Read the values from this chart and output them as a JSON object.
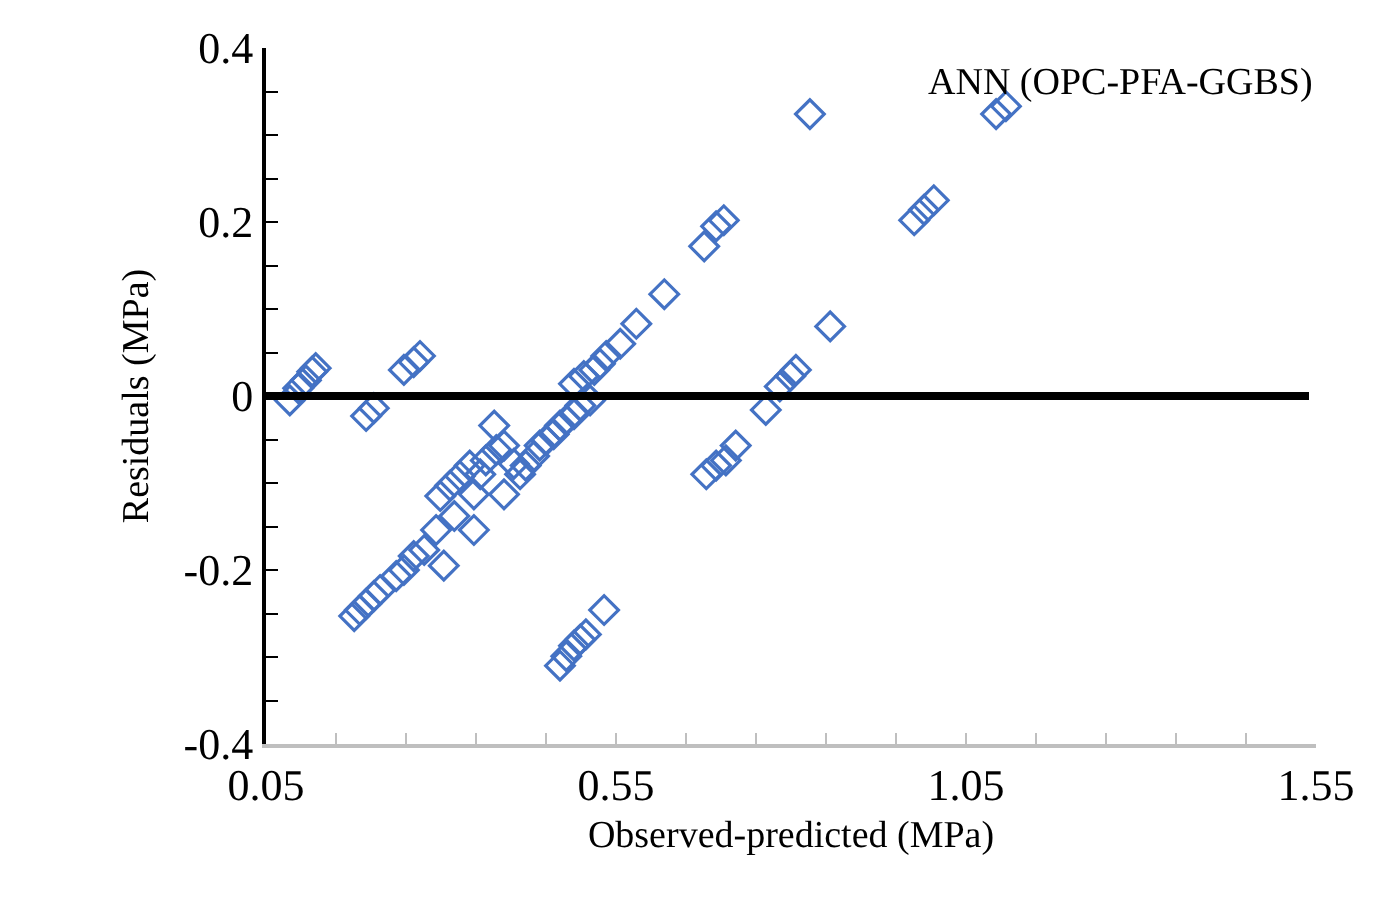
{
  "chart_data": {
    "type": "scatter",
    "xlabel": "Observed-predicted (MPa)",
    "ylabel": "Residuals (MPa)",
    "annotations": [
      "ANN (OPC-PFA-GGBS)"
    ],
    "marker": "diamond",
    "xlim": [
      0.05,
      1.55
    ],
    "xticks": [
      0.05,
      {
        "value": 0.15,
        "label": null
      },
      {
        "value": 0.25,
        "label": null
      },
      {
        "value": 0.35,
        "label": null
      },
      {
        "value": 0.45,
        "label": null
      },
      0.55,
      {
        "value": 0.65,
        "label": null
      },
      {
        "value": 0.75,
        "label": null
      },
      {
        "value": 0.85,
        "label": null
      },
      {
        "value": 0.95,
        "label": null
      },
      1.05,
      {
        "value": 1.15,
        "label": null
      },
      {
        "value": 1.25,
        "label": null
      },
      {
        "value": 1.35,
        "label": null
      },
      {
        "value": 1.45,
        "label": null
      },
      1.55
    ],
    "ylim": [
      -0.4,
      0.4
    ],
    "yticks": [
      -0.4,
      {
        "value": -0.35,
        "label": null
      },
      -0.2,
      {
        "value": -0.3,
        "label": null
      },
      {
        "value": -0.25,
        "label": null
      },
      {
        "value": -0.15,
        "label": null
      },
      {
        "value": -0.1,
        "label": null
      },
      {
        "value": -0.05,
        "label": null
      },
      0,
      {
        "value": 0.05,
        "label": null
      },
      {
        "value": 0.1,
        "label": null
      },
      {
        "value": 0.15,
        "label": null
      },
      0.2,
      {
        "value": 0.25,
        "label": null
      },
      {
        "value": 0.3,
        "label": null
      },
      {
        "value": 0.35,
        "label": null
      },
      0.4
    ],
    "ref_lines": [
      {
        "axis": "y",
        "value": 0,
        "color": "#000000"
      }
    ],
    "series": [
      {
        "color": "#4472c4",
        "x": [
          0.084,
          0.096,
          0.107,
          0.116,
          0.121,
          0.193,
          0.204,
          0.247,
          0.261,
          0.27,
          0.176,
          0.184,
          0.193,
          0.204,
          0.213,
          0.236,
          0.247,
          0.261,
          0.276,
          0.293,
          0.304,
          0.319,
          0.347,
          0.299,
          0.313,
          0.327,
          0.341,
          0.347,
          0.356,
          0.364,
          0.376,
          0.379,
          0.39,
          0.39,
          0.404,
          0.413,
          0.421,
          0.433,
          0.441,
          0.45,
          0.461,
          0.47,
          0.479,
          0.49,
          0.499,
          0.513,
          0.49,
          0.504,
          0.519,
          0.527,
          0.536,
          0.556,
          0.579,
          0.619,
          0.676,
          0.693,
          0.704,
          0.47,
          0.479,
          0.49,
          0.499,
          0.507,
          0.533,
          0.679,
          0.693,
          0.707,
          0.721,
          0.764,
          0.784,
          0.799,
          0.807,
          0.856,
          0.827,
          0.976,
          0.99,
          1.004,
          1.093,
          1.107
        ],
        "values": [
          -0.005,
          0.009,
          0.018,
          0.028,
          0.032,
          -0.023,
          -0.014,
          0.03,
          0.039,
          0.046,
          -0.253,
          -0.246,
          -0.239,
          -0.23,
          -0.223,
          -0.207,
          -0.2,
          -0.184,
          -0.177,
          -0.154,
          -0.195,
          -0.138,
          -0.154,
          -0.115,
          -0.103,
          -0.092,
          -0.08,
          -0.113,
          -0.09,
          -0.074,
          -0.034,
          -0.062,
          -0.057,
          -0.113,
          -0.078,
          -0.09,
          -0.08,
          -0.069,
          -0.057,
          -0.051,
          -0.044,
          -0.034,
          -0.028,
          -0.021,
          -0.011,
          -0.005,
          0.014,
          0.023,
          0.03,
          0.037,
          0.046,
          0.06,
          0.083,
          0.117,
          0.172,
          0.195,
          0.202,
          -0.31,
          -0.299,
          -0.287,
          -0.28,
          -0.274,
          -0.246,
          -0.09,
          -0.08,
          -0.074,
          -0.057,
          -0.016,
          0.011,
          0.023,
          0.03,
          0.08,
          0.324,
          0.202,
          0.214,
          0.225,
          0.324,
          0.333
        ]
      }
    ]
  }
}
